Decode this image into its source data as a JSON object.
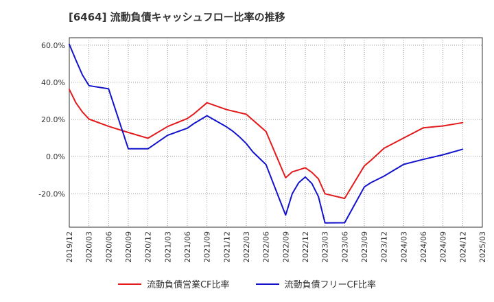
{
  "title": "[6464]  流動負債キャッシュフロー比率の推移",
  "chart_data": {
    "type": "line",
    "ylim": [
      -38,
      64
    ],
    "yticks": [
      60,
      40,
      20,
      0,
      -20
    ],
    "ytick_labels": [
      "60.0%",
      "40.0%",
      "20.0%",
      "0.0%",
      "-20.0%"
    ],
    "xlim": [
      "2019-12",
      "2025-03"
    ],
    "xtick_labels": [
      "2019/12",
      "2020/03",
      "2020/06",
      "2020/09",
      "2020/12",
      "2021/03",
      "2021/06",
      "2021/09",
      "2021/12",
      "2022/03",
      "2022/06",
      "2022/09",
      "2022/12",
      "2023/03",
      "2023/06",
      "2023/09",
      "2023/12",
      "2024/03",
      "2024/06",
      "2024/09",
      "2024/12",
      "2025/03"
    ],
    "grid": true,
    "legend_position": "bottom",
    "series": [
      {
        "name": "流動負債営業CF比率",
        "color": "#e31a1c",
        "points": [
          [
            "2019-12",
            36.2
          ],
          [
            "2020-01",
            29
          ],
          [
            "2020-02",
            24
          ],
          [
            "2020-03",
            20.2
          ],
          [
            "2020-06",
            16.3
          ],
          [
            "2020-09",
            13.0
          ],
          [
            "2020-12",
            9.9
          ],
          [
            "2021-03",
            16.2
          ],
          [
            "2021-06",
            20.5
          ],
          [
            "2021-07",
            23
          ],
          [
            "2021-09",
            29.0
          ],
          [
            "2021-12",
            25.3
          ],
          [
            "2022-03",
            22.8
          ],
          [
            "2022-06",
            13.5
          ],
          [
            "2022-09",
            -11.4
          ],
          [
            "2022-10",
            -8.2
          ],
          [
            "2022-12",
            -6.0
          ],
          [
            "2023-01",
            -8.5
          ],
          [
            "2023-02",
            -12.0
          ],
          [
            "2023-03",
            -20.0
          ],
          [
            "2023-06",
            -22.5
          ],
          [
            "2023-09",
            -5.0
          ],
          [
            "2023-10",
            -2.0
          ],
          [
            "2023-12",
            4.5
          ],
          [
            "2024-03",
            10.0
          ],
          [
            "2024-06",
            15.5
          ],
          [
            "2024-09",
            16.5
          ],
          [
            "2024-12",
            18.3
          ]
        ]
      },
      {
        "name": "流動負債フリーCF比率",
        "color": "#1212cc",
        "points": [
          [
            "2019-12",
            60.5
          ],
          [
            "2020-01",
            52
          ],
          [
            "2020-02",
            44
          ],
          [
            "2020-03",
            38.2
          ],
          [
            "2020-06",
            36.5
          ],
          [
            "2020-09",
            4.2
          ],
          [
            "2020-12",
            4.2
          ],
          [
            "2021-03",
            11.5
          ],
          [
            "2021-06",
            15.3
          ],
          [
            "2021-07",
            17.8
          ],
          [
            "2021-09",
            22.0
          ],
          [
            "2021-12",
            16.0
          ],
          [
            "2022-01",
            13.5
          ],
          [
            "2022-02",
            10.5
          ],
          [
            "2022-03",
            7.0
          ],
          [
            "2022-04",
            2.5
          ],
          [
            "2022-06",
            -4.3
          ],
          [
            "2022-09",
            -31.5
          ],
          [
            "2022-10",
            -20.0
          ],
          [
            "2022-11",
            -14.0
          ],
          [
            "2022-12",
            -11.0
          ],
          [
            "2023-01",
            -14.5
          ],
          [
            "2023-02",
            -21.5
          ],
          [
            "2023-03",
            -35.7
          ],
          [
            "2023-06",
            -35.6
          ],
          [
            "2023-09",
            -16.3
          ],
          [
            "2023-10",
            -14.0
          ],
          [
            "2023-12",
            -10.5
          ],
          [
            "2024-03",
            -4.2
          ],
          [
            "2024-06",
            -1.5
          ],
          [
            "2024-09",
            1.0
          ],
          [
            "2024-12",
            4.0
          ]
        ]
      }
    ]
  }
}
